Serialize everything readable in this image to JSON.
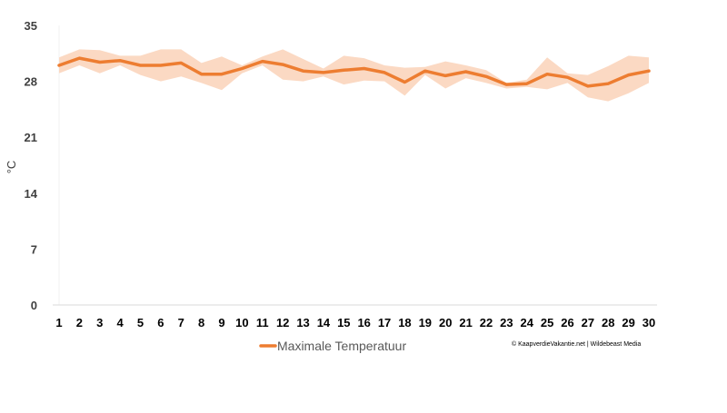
{
  "chart_data": {
    "type": "line",
    "title": "",
    "xlabel": "",
    "ylabel": "°C",
    "x": [
      1,
      2,
      3,
      4,
      5,
      6,
      7,
      8,
      9,
      10,
      11,
      12,
      13,
      14,
      15,
      16,
      17,
      18,
      19,
      20,
      21,
      22,
      23,
      24,
      25,
      26,
      27,
      28,
      29,
      30
    ],
    "x_tick_labels": [
      "1",
      "2",
      "3",
      "4",
      "5",
      "6",
      "7",
      "8",
      "9",
      "10",
      "11",
      "12",
      "13",
      "14",
      "15",
      "16",
      "17",
      "18",
      "19",
      "20",
      "21",
      "22",
      "23",
      "24",
      "25",
      "26",
      "27",
      "28",
      "29",
      "30"
    ],
    "ylim": [
      0,
      35
    ],
    "y_ticks": [
      0,
      7,
      14,
      21,
      28,
      35
    ],
    "y_tick_labels": [
      "0",
      "7",
      "14",
      "21",
      "28",
      "35"
    ],
    "grid": false,
    "legend_position": "bottom-left",
    "series": [
      {
        "name": "Maximale Temperatuur",
        "color": "#ED7D31",
        "values": [
          30.0,
          30.9,
          30.4,
          30.6,
          30.0,
          30.0,
          30.3,
          28.9,
          28.9,
          29.6,
          30.5,
          30.1,
          29.3,
          29.1,
          29.4,
          29.6,
          29.1,
          27.9,
          29.3,
          28.7,
          29.2,
          28.6,
          27.6,
          27.7,
          28.9,
          28.5,
          27.4,
          27.7,
          28.8,
          29.3
        ],
        "band": {
          "color": "#FBD9C3",
          "upper": [
            31.0,
            32.0,
            31.9,
            31.2,
            31.2,
            32.0,
            32.0,
            30.3,
            31.1,
            30.0,
            31.1,
            32.0,
            30.8,
            29.6,
            31.2,
            30.9,
            30.0,
            29.7,
            29.8,
            30.5,
            30.0,
            29.4,
            27.8,
            28.2,
            31.0,
            29.0,
            28.8,
            29.9,
            31.2,
            31.0
          ],
          "lower": [
            29.0,
            30.0,
            29.0,
            30.0,
            28.8,
            28.0,
            28.6,
            27.8,
            26.9,
            29.0,
            30.0,
            28.2,
            28.0,
            28.6,
            27.6,
            28.1,
            28.0,
            26.2,
            28.8,
            27.1,
            28.4,
            27.8,
            27.1,
            27.3,
            27.0,
            27.8,
            26.0,
            25.5,
            26.5,
            27.8
          ]
        }
      }
    ],
    "credit": "© KaapverdieVakantie.net | Wildebeast Media"
  }
}
